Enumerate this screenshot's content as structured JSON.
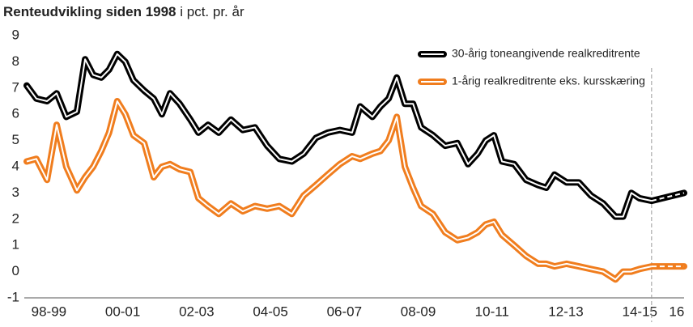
{
  "chart_data": {
    "type": "line",
    "title": "Renteudvikling siden 1998",
    "subtitle": "i pct. pr. år",
    "xlim": [
      1998.4,
      2016.2
    ],
    "ylim": [
      -1,
      9
    ],
    "yticks": [
      -1,
      0,
      1,
      2,
      3,
      4,
      5,
      6,
      7,
      8,
      9
    ],
    "xticks": [
      {
        "value": 1999,
        "label": "98-99"
      },
      {
        "value": 2001,
        "label": "00-01"
      },
      {
        "value": 2003,
        "label": "02-03"
      },
      {
        "value": 2005,
        "label": "04-05"
      },
      {
        "value": 2007,
        "label": "06-07"
      },
      {
        "value": 2009,
        "label": "08-09"
      },
      {
        "value": 2011,
        "label": "10-11"
      },
      {
        "value": 2013,
        "label": "12-13"
      },
      {
        "value": 2015,
        "label": "14-15"
      },
      {
        "value": 2016,
        "label": "16"
      }
    ],
    "grid": false,
    "legend": "upper right",
    "forecast_start": 2015.32,
    "x": [
      1998.4,
      1998.66,
      1998.95,
      1999.21,
      1999.47,
      1999.76,
      1999.98,
      2000.2,
      2000.42,
      2000.63,
      2000.85,
      2001.07,
      2001.29,
      2001.58,
      2001.84,
      2002.06,
      2002.28,
      2002.54,
      2002.83,
      2003.05,
      2003.31,
      2003.6,
      2003.93,
      2004.25,
      2004.58,
      2004.91,
      2005.24,
      2005.58,
      2005.9,
      2006.23,
      2006.55,
      2006.88,
      2007.21,
      2007.43,
      2007.76,
      2007.98,
      2008.2,
      2008.42,
      2008.64,
      2008.86,
      2009.08,
      2009.4,
      2009.73,
      2010.06,
      2010.35,
      2010.61,
      2010.83,
      2011.05,
      2011.27,
      2011.6,
      2011.92,
      2012.25,
      2012.47,
      2012.69,
      2013.02,
      2013.35,
      2013.68,
      2014.01,
      2014.34,
      2014.55,
      2014.77,
      2014.99,
      2015.32,
      2016.2
    ],
    "series": [
      {
        "name": "30-årig toneangivende realkreditrente",
        "color": "#000000",
        "values": [
          7.1,
          6.6,
          6.5,
          6.8,
          5.9,
          6.1,
          8.1,
          7.5,
          7.4,
          7.7,
          8.3,
          8.0,
          7.3,
          6.9,
          6.6,
          6.0,
          6.8,
          6.4,
          5.8,
          5.3,
          5.6,
          5.3,
          5.8,
          5.4,
          5.5,
          4.8,
          4.3,
          4.2,
          4.5,
          5.1,
          5.3,
          5.4,
          5.3,
          6.3,
          5.9,
          6.3,
          6.6,
          7.4,
          6.4,
          6.4,
          5.5,
          5.2,
          4.8,
          4.9,
          4.1,
          4.5,
          5.0,
          5.2,
          4.2,
          4.1,
          3.5,
          3.3,
          3.2,
          3.7,
          3.4,
          3.4,
          2.9,
          2.6,
          2.1,
          2.1,
          3.0,
          2.8,
          2.7,
          3.0
        ]
      },
      {
        "name": "1-årig realkreditrente eks. kursskæring",
        "color": "#f07d1e",
        "values": [
          4.2,
          4.3,
          3.5,
          5.6,
          4.0,
          3.1,
          3.6,
          4.0,
          4.6,
          5.3,
          6.5,
          6.0,
          5.2,
          4.9,
          3.6,
          4.0,
          4.1,
          3.9,
          3.8,
          2.8,
          2.5,
          2.2,
          2.6,
          2.3,
          2.5,
          2.4,
          2.5,
          2.2,
          2.9,
          3.3,
          3.7,
          4.1,
          4.4,
          4.3,
          4.5,
          4.6,
          5.0,
          5.9,
          4.0,
          3.2,
          2.5,
          2.2,
          1.5,
          1.2,
          1.3,
          1.5,
          1.8,
          1.9,
          1.4,
          1.0,
          0.6,
          0.3,
          0.3,
          0.2,
          0.3,
          0.2,
          0.1,
          0.0,
          -0.3,
          0.0,
          0.0,
          0.1,
          0.2,
          0.2
        ]
      }
    ]
  }
}
